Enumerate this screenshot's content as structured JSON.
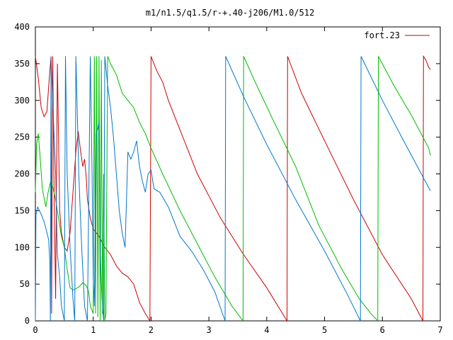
{
  "chart_data": {
    "type": "line",
    "title": "m1/n1.5/q1.5/r-+.40-j206/M1.0/512",
    "xlabel": "",
    "ylabel": "",
    "xlim": [
      0,
      7
    ],
    "ylim": [
      0,
      400
    ],
    "x_ticks": [
      "0",
      "1",
      "2",
      "3",
      "4",
      "5",
      "6",
      "7"
    ],
    "y_ticks": [
      "0",
      "50",
      "100",
      "150",
      "200",
      "250",
      "300",
      "350",
      "400"
    ],
    "grid": false,
    "legend_position": "top-right",
    "series": [
      {
        "name": "fort.23",
        "color": "#cc0000",
        "points": [
          [
            0,
            360
          ],
          [
            0.05,
            330
          ],
          [
            0.1,
            290
          ],
          [
            0.15,
            278
          ],
          [
            0.2,
            285
          ],
          [
            0.24,
            330
          ],
          [
            0.27,
            360
          ],
          [
            0.28,
            10
          ],
          [
            0.3,
            360
          ],
          [
            0.32,
            200
          ],
          [
            0.35,
            30
          ],
          [
            0.38,
            350
          ],
          [
            0.4,
            250
          ],
          [
            0.42,
            150
          ],
          [
            0.45,
            120
          ],
          [
            0.5,
            100
          ],
          [
            0.55,
            95
          ],
          [
            0.6,
            120
          ],
          [
            0.65,
            175
          ],
          [
            0.7,
            230
          ],
          [
            0.74,
            258
          ],
          [
            0.78,
            232
          ],
          [
            0.82,
            210
          ],
          [
            0.85,
            220
          ],
          [
            0.88,
            195
          ],
          [
            0.9,
            165
          ],
          [
            0.95,
            140
          ],
          [
            1.0,
            125
          ],
          [
            1.1,
            115
          ],
          [
            1.2,
            100
          ],
          [
            1.3,
            90
          ],
          [
            1.4,
            75
          ],
          [
            1.5,
            65
          ],
          [
            1.6,
            60
          ],
          [
            1.7,
            50
          ],
          [
            1.8,
            25
          ],
          [
            1.9,
            10
          ],
          [
            1.98,
            0
          ],
          [
            2.0,
            360
          ],
          [
            2.05,
            350
          ],
          [
            2.1,
            340
          ],
          [
            2.2,
            325
          ],
          [
            2.3,
            300
          ],
          [
            2.5,
            260
          ],
          [
            2.8,
            200
          ],
          [
            3.2,
            140
          ],
          [
            3.6,
            90
          ],
          [
            4.0,
            45
          ],
          [
            4.35,
            0
          ],
          [
            4.36,
            360
          ],
          [
            4.6,
            310
          ],
          [
            5.0,
            245
          ],
          [
            5.5,
            165
          ],
          [
            6.0,
            90
          ],
          [
            6.5,
            30
          ],
          [
            6.7,
            0
          ],
          [
            6.71,
            360
          ],
          [
            6.75,
            355
          ],
          [
            6.8,
            345
          ],
          [
            6.83,
            342
          ]
        ]
      },
      {
        "color": "#00bb00",
        "points": [
          [
            0,
            175
          ],
          [
            0.02,
            240
          ],
          [
            0.05,
            255
          ],
          [
            0.08,
            225
          ],
          [
            0.12,
            180
          ],
          [
            0.18,
            155
          ],
          [
            0.22,
            175
          ],
          [
            0.27,
            192
          ],
          [
            0.3,
            182
          ],
          [
            0.35,
            165
          ],
          [
            0.4,
            140
          ],
          [
            0.45,
            115
          ],
          [
            0.5,
            100
          ],
          [
            0.55,
            70
          ],
          [
            0.6,
            45
          ],
          [
            0.65,
            42
          ],
          [
            0.7,
            44
          ],
          [
            0.75,
            46
          ],
          [
            0.82,
            52
          ],
          [
            0.88,
            48
          ],
          [
            0.92,
            40
          ],
          [
            0.95,
            20
          ],
          [
            1.0,
            10
          ],
          [
            1.02,
            360
          ],
          [
            1.04,
            10
          ],
          [
            1.06,
            360
          ],
          [
            1.08,
            5
          ],
          [
            1.1,
            360
          ],
          [
            1.12,
            0
          ],
          [
            1.14,
            355
          ],
          [
            1.16,
            10
          ],
          [
            1.18,
            200
          ],
          [
            1.2,
            0
          ],
          [
            1.22,
            10
          ],
          [
            1.25,
            360
          ],
          [
            1.3,
            350
          ],
          [
            1.4,
            335
          ],
          [
            1.5,
            310
          ],
          [
            1.6,
            300
          ],
          [
            1.7,
            290
          ],
          [
            1.8,
            270
          ],
          [
            1.9,
            255
          ],
          [
            2.0,
            235
          ],
          [
            2.2,
            200
          ],
          [
            2.5,
            150
          ],
          [
            2.8,
            105
          ],
          [
            3.1,
            60
          ],
          [
            3.4,
            20
          ],
          [
            3.59,
            0
          ],
          [
            3.6,
            360
          ],
          [
            3.8,
            325
          ],
          [
            4.1,
            275
          ],
          [
            4.5,
            210
          ],
          [
            4.9,
            130
          ],
          [
            5.3,
            70
          ],
          [
            5.6,
            30
          ],
          [
            5.8,
            10
          ],
          [
            5.92,
            0
          ],
          [
            5.93,
            360
          ],
          [
            6.2,
            320
          ],
          [
            6.5,
            280
          ],
          [
            6.8,
            235
          ],
          [
            6.83,
            225
          ]
        ]
      },
      {
        "color": "#0077cc",
        "points": [
          [
            0,
            0
          ],
          [
            0.01,
            145
          ],
          [
            0.04,
            155
          ],
          [
            0.1,
            145
          ],
          [
            0.15,
            135
          ],
          [
            0.2,
            120
          ],
          [
            0.23,
            110
          ],
          [
            0.25,
            80
          ],
          [
            0.26,
            0
          ],
          [
            0.27,
            360
          ],
          [
            0.3,
            300
          ],
          [
            0.35,
            200
          ],
          [
            0.38,
            90
          ],
          [
            0.42,
            60
          ],
          [
            0.45,
            20
          ],
          [
            0.5,
            0
          ],
          [
            0.52,
            360
          ],
          [
            0.55,
            200
          ],
          [
            0.6,
            100
          ],
          [
            0.65,
            30
          ],
          [
            0.68,
            0
          ],
          [
            0.7,
            360
          ],
          [
            0.75,
            200
          ],
          [
            0.8,
            100
          ],
          [
            0.85,
            20
          ],
          [
            0.9,
            0
          ],
          [
            0.95,
            360
          ],
          [
            0.98,
            200
          ],
          [
            1.0,
            60
          ],
          [
            1.02,
            20
          ],
          [
            1.05,
            255
          ],
          [
            1.08,
            262
          ],
          [
            1.1,
            270
          ],
          [
            1.12,
            100
          ],
          [
            1.15,
            30
          ],
          [
            1.18,
            0
          ],
          [
            1.2,
            360
          ],
          [
            1.25,
            320
          ],
          [
            1.3,
            290
          ],
          [
            1.35,
            250
          ],
          [
            1.4,
            200
          ],
          [
            1.45,
            150
          ],
          [
            1.5,
            120
          ],
          [
            1.55,
            100
          ],
          [
            1.6,
            230
          ],
          [
            1.65,
            220
          ],
          [
            1.7,
            230
          ],
          [
            1.75,
            245
          ],
          [
            1.8,
            210
          ],
          [
            1.85,
            190
          ],
          [
            1.9,
            175
          ],
          [
            1.95,
            200
          ],
          [
            2.0,
            205
          ],
          [
            2.05,
            180
          ],
          [
            2.15,
            175
          ],
          [
            2.3,
            155
          ],
          [
            2.5,
            115
          ],
          [
            2.7,
            95
          ],
          [
            2.9,
            70
          ],
          [
            3.1,
            40
          ],
          [
            3.28,
            0
          ],
          [
            3.29,
            360
          ],
          [
            3.6,
            305
          ],
          [
            4.0,
            240
          ],
          [
            4.5,
            165
          ],
          [
            5.0,
            95
          ],
          [
            5.4,
            35
          ],
          [
            5.62,
            0
          ],
          [
            5.63,
            360
          ],
          [
            6.0,
            300
          ],
          [
            6.4,
            240
          ],
          [
            6.83,
            177
          ]
        ]
      }
    ]
  }
}
